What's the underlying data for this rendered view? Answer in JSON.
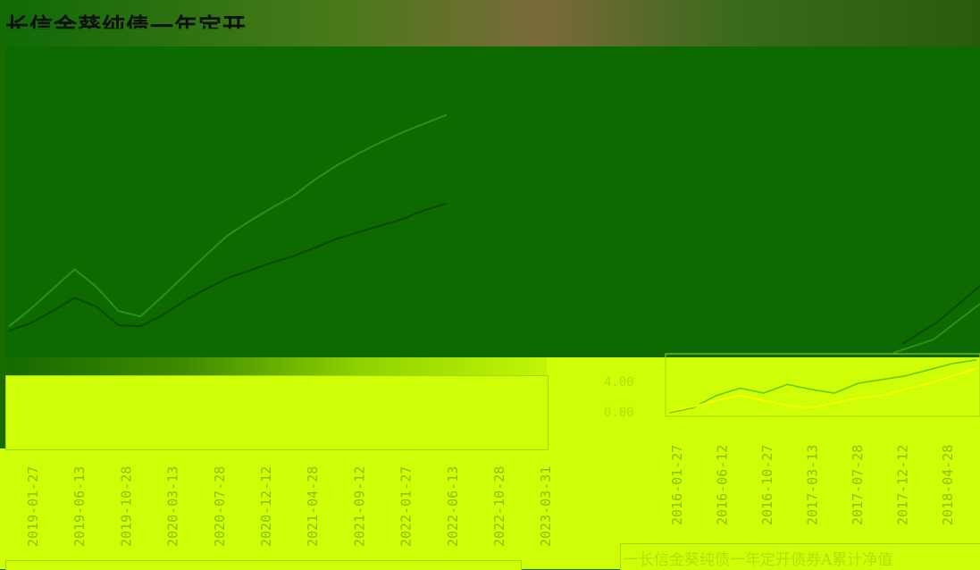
{
  "page": {
    "title": "长信金葵纯债一年定开",
    "mid_label": "",
    "legend_text": "一长信金葵纯债一年定开债券A累计净值"
  },
  "colors": {
    "dark_bg": "#0d6a00",
    "light_bg": "#cfff08",
    "line_dark": "#0a4a00",
    "line_light": "#2f8f1a",
    "line_green": "#66cc00",
    "line_yellow": "#ffff00",
    "tick_text": "#8ac000"
  },
  "chart_data": [
    {
      "type": "line",
      "title": "",
      "x_tick_labels": [
        "2019-01-27",
        "2019-06-13",
        "2019-10-28",
        "2020-03-13",
        "2020-07-28",
        "2020-12-12",
        "2021-04-28",
        "2021-09-12",
        "2022-01-27",
        "2022-06-13",
        "2022-10-28",
        "2023-03-31"
      ],
      "series": [
        {
          "values": [
            0.8,
            1.5,
            2.6,
            3.8,
            3.0,
            1.3,
            1.2,
            2.2,
            3.5,
            4.6,
            5.6,
            6.3,
            7.0,
            7.6,
            8.4,
            9.2,
            9.8,
            10.4,
            11.0,
            11.8,
            12.4
          ]
        },
        {
          "values": [
            1.2,
            2.8,
            4.6,
            6.4,
            4.8,
            2.6,
            2.1,
            3.9,
            5.8,
            7.7,
            9.5,
            10.8,
            12.0,
            13.1,
            14.6,
            15.9,
            17.0,
            18.0,
            18.9,
            19.7,
            20.5
          ]
        }
      ]
    },
    {
      "type": "line",
      "title": "",
      "x_tick_labels": [
        "2016-01-27",
        "2016-06-12",
        "2016-10-27",
        "2017-03-13",
        "2017-07-28",
        "2017-12-12",
        "2018-04-28"
      ],
      "y_tick_labels": [
        "0.00",
        "4.00"
      ],
      "ylim": [
        0,
        4.5
      ],
      "series": [
        {
          "name": "长信金葵纯债一年定开债券A累计净值",
          "values": [
            0.0,
            0.4,
            1.4,
            2.0,
            1.6,
            2.3,
            1.9,
            1.6,
            2.4,
            2.7,
            3.0,
            3.5,
            4.0,
            4.3
          ]
        },
        {
          "values": [
            0.1,
            0.5,
            1.0,
            1.4,
            1.0,
            0.6,
            0.4,
            0.8,
            1.2,
            1.4,
            1.9,
            2.4,
            3.0,
            3.6
          ]
        }
      ]
    }
  ]
}
